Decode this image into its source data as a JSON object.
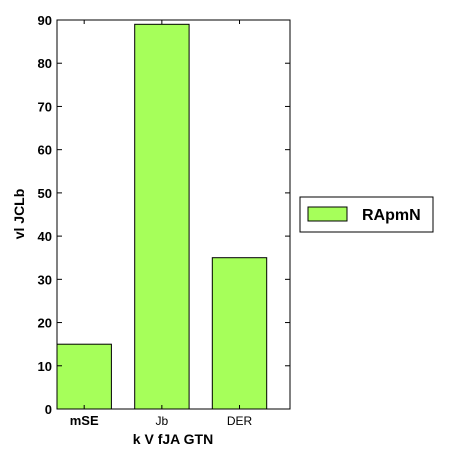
{
  "chart_data": {
    "type": "bar",
    "categories": [
      "mSE",
      "Jb",
      "DER"
    ],
    "category_bold": [
      true,
      false,
      false
    ],
    "series": [
      {
        "name": "RApmN",
        "values": [
          15,
          89,
          35
        ],
        "color": "#a6ff5a"
      }
    ],
    "xlabel": "k V fJA GTN",
    "ylabel": "vl  JCLb",
    "ylim": [
      0,
      90
    ],
    "yticks": [
      0,
      10,
      20,
      30,
      40,
      50,
      60,
      70,
      80,
      90
    ],
    "grid": false,
    "legend": {
      "placement": "outside-right",
      "entries": [
        "RApmN"
      ]
    }
  }
}
